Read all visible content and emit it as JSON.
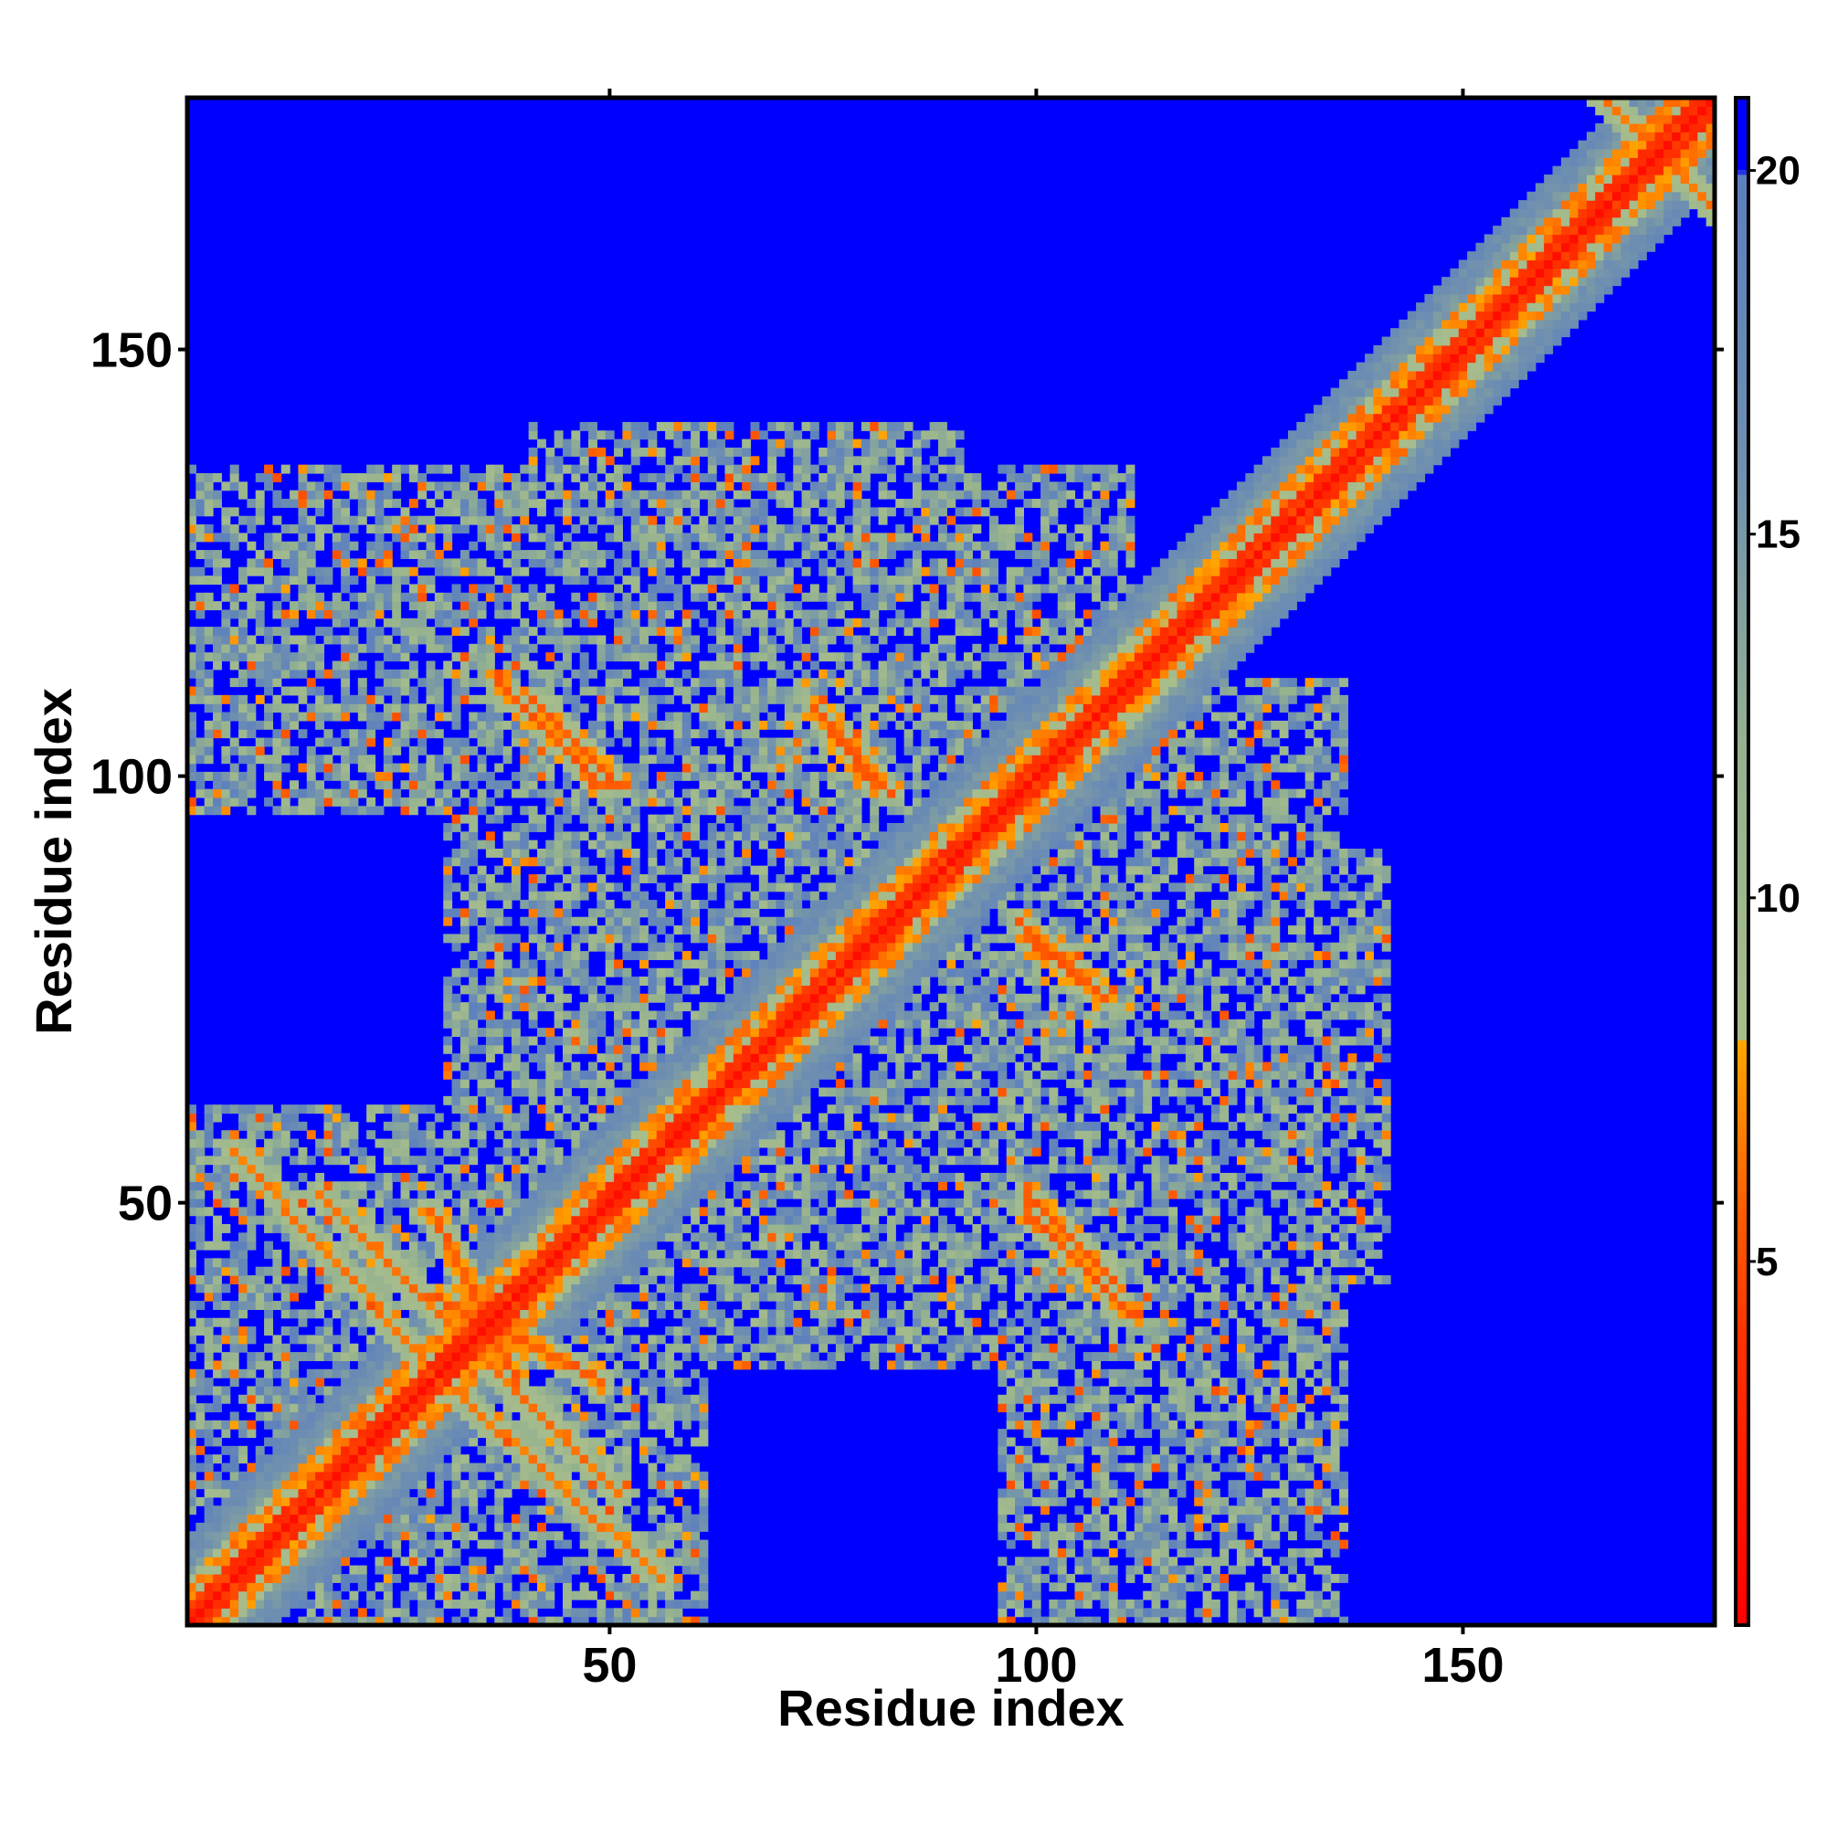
{
  "chart_data": {
    "type": "heatmap",
    "title": "",
    "xlabel": "Residue index",
    "ylabel": "Residue index",
    "xlim": [
      0.5,
      179.5
    ],
    "ylim": [
      0.5,
      179.5
    ],
    "x_ticks": [
      50,
      100,
      150
    ],
    "y_ticks": [
      50,
      100,
      150
    ],
    "x_tick_labels": [
      "50",
      "100",
      "150"
    ],
    "y_tick_labels": [
      "50",
      "100",
      "150"
    ],
    "n_residues": 179,
    "grid": false,
    "legend": "none",
    "colorbar": {
      "position": "right",
      "range": [
        0,
        21
      ],
      "ticks": [
        5,
        10,
        15,
        20
      ],
      "tick_labels": [
        "5",
        "10",
        "15",
        "20"
      ],
      "stops": [
        {
          "value": 0,
          "color": "#ff0000"
        },
        {
          "value": 4,
          "color": "#ff3300"
        },
        {
          "value": 6,
          "color": "#ff6600"
        },
        {
          "value": 8,
          "color": "#ffa500"
        },
        {
          "value": 8.01,
          "color": "#a8bd8c"
        },
        {
          "value": 12,
          "color": "#95b28f"
        },
        {
          "value": 16,
          "color": "#6f8fb0"
        },
        {
          "value": 19.9,
          "color": "#5b7fbf"
        },
        {
          "value": 20,
          "color": "#0000ff"
        },
        {
          "value": 21,
          "color": "#0000ff"
        }
      ],
      "cutoff_value": 20,
      "cutoff_color": "#0000ff"
    },
    "description_values": {
      "note_dist_unit": "Angstrom-like distance; values above 20 shown blue",
      "diagonal_distance": 2,
      "near_diagonal_width": 12
    },
    "contact_segments": [
      {
        "a": [
          5,
          28
        ],
        "b": [
          30,
          55
        ],
        "orientation": "anti",
        "strength": 6
      },
      {
        "a": [
          15,
          45
        ],
        "b": [
          20,
          50
        ],
        "orientation": "anti",
        "strength": 6
      },
      {
        "a": [
          28,
          38
        ],
        "b": [
          28,
          48
        ],
        "orientation": "anti",
        "strength": 5
      },
      {
        "a": [
          36,
          48
        ],
        "b": [
          98,
          110
        ],
        "orientation": "anti",
        "strength": 5
      },
      {
        "a": [
          73,
          80
        ],
        "b": [
          98,
          107
        ],
        "orientation": "anti",
        "strength": 5
      },
      {
        "a": [
          98,
          108
        ],
        "b": [
          40,
          50
        ],
        "orientation": "anti",
        "strength": 5
      },
      {
        "a": [
          97,
          106
        ],
        "b": [
          74,
          82
        ],
        "orientation": "anti",
        "strength": 5
      },
      {
        "a": [
          165,
          179
        ],
        "b": [
          165,
          179
        ],
        "orientation": "anti",
        "strength": 6
      }
    ],
    "domains": [
      {
        "range": [
          0,
          60
        ],
        "cross": [
          0,
          60
        ]
      },
      {
        "range": [
          30,
          110
        ],
        "cross": [
          60,
          130
        ]
      },
      {
        "range": [
          95,
          135
        ],
        "cross": [
          0,
          110
        ]
      },
      {
        "range": [
          70,
          140
        ],
        "cross": [
          40,
          90
        ]
      },
      {
        "range": [
          0,
          20
        ],
        "cross": [
          100,
          130
        ]
      }
    ]
  }
}
